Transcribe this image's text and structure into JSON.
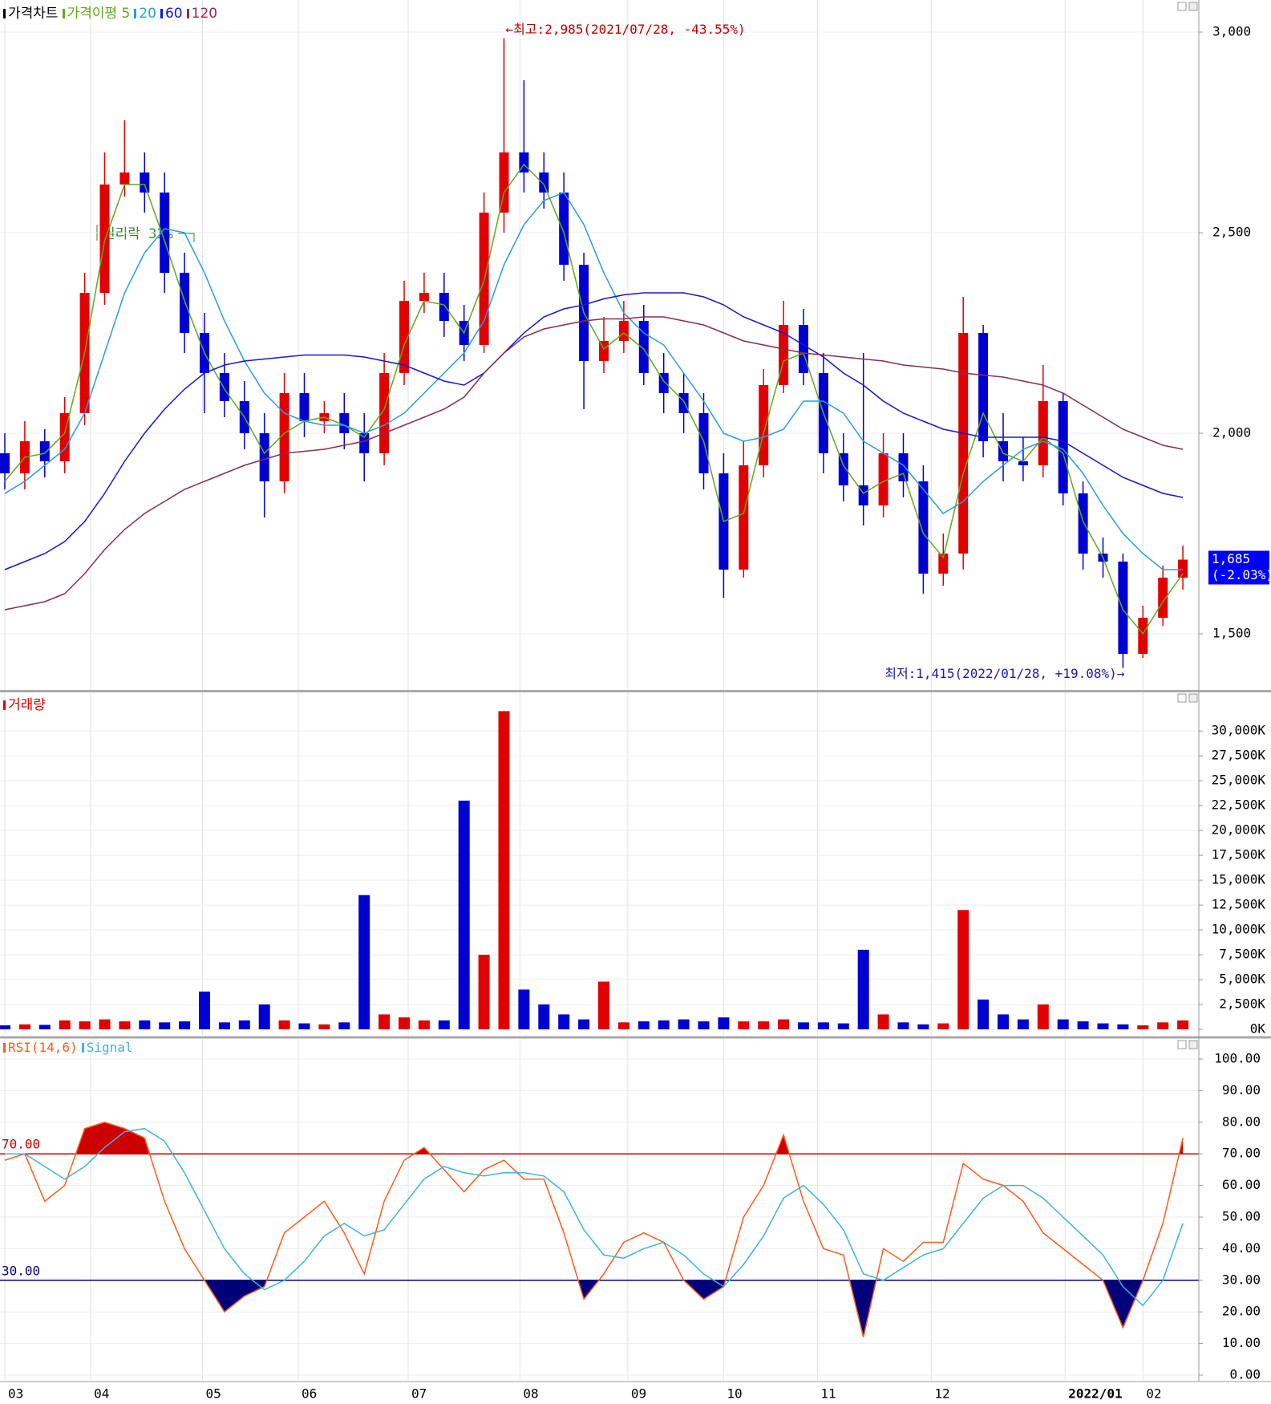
{
  "chart_data": [
    {
      "type": "candlestick",
      "name": "가격차트",
      "open": [
        1950,
        1900,
        1980,
        1930,
        2050,
        2350,
        2620,
        2650,
        2600,
        2400,
        2250,
        2150,
        2080,
        2000,
        1880,
        2100,
        2030,
        2050,
        2000,
        1950,
        2150,
        2330,
        2350,
        2280,
        2220,
        2550,
        2700,
        2650,
        2600,
        2420,
        2180,
        2230,
        2280,
        2150,
        2100,
        2050,
        1900,
        1660,
        1920,
        2120,
        2270,
        2150,
        1950,
        1870,
        1820,
        1950,
        1880,
        1650,
        1700,
        2250,
        1980,
        1930,
        1920,
        2080,
        1850,
        1700,
        1680,
        1450,
        1540,
        1640
      ],
      "high": [
        2000,
        2030,
        2010,
        2090,
        2400,
        2700,
        2780,
        2700,
        2650,
        2450,
        2300,
        2200,
        2130,
        2050,
        2150,
        2150,
        2080,
        2100,
        2050,
        2200,
        2380,
        2400,
        2400,
        2320,
        2600,
        2985,
        2880,
        2700,
        2650,
        2450,
        2290,
        2330,
        2320,
        2200,
        2150,
        2100,
        1950,
        1980,
        2160,
        2330,
        2310,
        2200,
        2000,
        2200,
        2000,
        2000,
        1920,
        1750,
        2340,
        2270,
        2050,
        1990,
        2170,
        2100,
        1880,
        1740,
        1700,
        1570,
        1670,
        1720
      ],
      "low": [
        1860,
        1860,
        1890,
        1900,
        2020,
        2320,
        2590,
        2550,
        2350,
        2200,
        2050,
        2040,
        1960,
        1790,
        1850,
        1990,
        2000,
        1960,
        1880,
        1920,
        2120,
        2300,
        2240,
        2180,
        2200,
        2500,
        2600,
        2560,
        2380,
        2060,
        2150,
        2200,
        2120,
        2050,
        2000,
        1860,
        1590,
        1640,
        1890,
        2100,
        2120,
        1900,
        1830,
        1770,
        1790,
        1840,
        1600,
        1620,
        1660,
        1940,
        1880,
        1880,
        1890,
        1820,
        1660,
        1640,
        1415,
        1440,
        1520,
        1610
      ],
      "close": [
        1900,
        1980,
        1930,
        2050,
        2350,
        2620,
        2650,
        2600,
        2400,
        2250,
        2150,
        2080,
        2000,
        1880,
        2100,
        2030,
        2050,
        2000,
        1950,
        2150,
        2330,
        2350,
        2280,
        2220,
        2550,
        2700,
        2650,
        2600,
        2420,
        2180,
        2230,
        2280,
        2150,
        2100,
        2050,
        1900,
        1660,
        1920,
        2120,
        2270,
        2150,
        1950,
        1870,
        1820,
        1950,
        1880,
        1650,
        1700,
        2250,
        1980,
        1930,
        1920,
        2080,
        1850,
        1700,
        1680,
        1450,
        1540,
        1640,
        1685
      ],
      "up_color": "#e00000",
      "down_color": "#0000d0",
      "series": [
        {
          "name": "가격이평 5",
          "color": "#62a81e",
          "values": [
            1880,
            1940,
            1950,
            2000,
            2200,
            2480,
            2620,
            2620,
            2480,
            2330,
            2200,
            2110,
            2040,
            1950,
            2000,
            2030,
            2040,
            2020,
            1990,
            2060,
            2220,
            2330,
            2320,
            2250,
            2380,
            2600,
            2670,
            2620,
            2500,
            2300,
            2210,
            2250,
            2210,
            2130,
            2080,
            1980,
            1780,
            1800,
            2000,
            2180,
            2200,
            2050,
            1920,
            1850,
            1880,
            1900,
            1750,
            1690,
            1900,
            2050,
            1950,
            1930,
            1990,
            1950,
            1780,
            1690,
            1560,
            1500,
            1580,
            1650
          ]
        },
        {
          "name": "20",
          "color": "#2a9be0",
          "values": [
            1850,
            1880,
            1920,
            1960,
            2050,
            2200,
            2350,
            2450,
            2510,
            2500,
            2400,
            2280,
            2180,
            2100,
            2050,
            2030,
            2020,
            2020,
            2000,
            2020,
            2050,
            2100,
            2150,
            2200,
            2280,
            2420,
            2520,
            2580,
            2600,
            2520,
            2400,
            2300,
            2250,
            2220,
            2150,
            2080,
            2000,
            1980,
            1990,
            2010,
            2080,
            2080,
            2050,
            1980,
            1950,
            1920,
            1860,
            1800,
            1830,
            1880,
            1920,
            1960,
            1980,
            1960,
            1900,
            1820,
            1750,
            1700,
            1660,
            1660
          ]
        },
        {
          "name": "60",
          "color": "#1515d8",
          "values": [
            1660,
            1680,
            1700,
            1730,
            1780,
            1850,
            1930,
            2000,
            2060,
            2110,
            2150,
            2170,
            2180,
            2185,
            2190,
            2195,
            2195,
            2195,
            2190,
            2180,
            2170,
            2150,
            2130,
            2120,
            2150,
            2200,
            2250,
            2290,
            2310,
            2320,
            2335,
            2345,
            2350,
            2350,
            2350,
            2340,
            2320,
            2290,
            2270,
            2250,
            2220,
            2190,
            2150,
            2120,
            2080,
            2050,
            2030,
            2010,
            2000,
            1990,
            1990,
            1990,
            1990,
            1980,
            1950,
            1920,
            1890,
            1870,
            1850,
            1840
          ]
        },
        {
          "name": "120",
          "color": "#8a2c50",
          "values": [
            1560,
            1570,
            1580,
            1600,
            1650,
            1710,
            1760,
            1800,
            1830,
            1860,
            1880,
            1900,
            1920,
            1935,
            1950,
            1955,
            1960,
            1970,
            1980,
            2000,
            2020,
            2040,
            2060,
            2090,
            2150,
            2200,
            2240,
            2260,
            2270,
            2280,
            2285,
            2285,
            2290,
            2290,
            2280,
            2270,
            2250,
            2230,
            2220,
            2210,
            2200,
            2195,
            2190,
            2185,
            2180,
            2170,
            2165,
            2160,
            2150,
            2145,
            2140,
            2130,
            2120,
            2100,
            2070,
            2040,
            2010,
            1990,
            1970,
            1960
          ]
        }
      ],
      "high_note": "←최고:2,985(2021/07/28, -43.55%)",
      "low_note": "최저:1,415(2022/01/28, +19.08%)→",
      "note": "권리락 33%",
      "last_price": {
        "value": 1685,
        "label": "1,685"
      },
      "last_change": "(-2.03%)",
      "ylim": [
        1360,
        3080
      ],
      "yticks": [
        {
          "value": 1500,
          "label": "1,500"
        },
        {
          "value": 2000,
          "label": "2,000"
        },
        {
          "value": 2500,
          "label": "2,500"
        },
        {
          "value": 3000,
          "label": "3,000"
        }
      ]
    },
    {
      "type": "bar",
      "name": "거래량",
      "values": [
        400,
        500,
        450,
        900,
        800,
        1000,
        800,
        900,
        700,
        800,
        3800,
        700,
        900,
        2500,
        900,
        600,
        500,
        700,
        13500,
        1500,
        1200,
        900,
        900,
        23000,
        7500,
        32000,
        4000,
        2500,
        1500,
        1000,
        4800,
        700,
        800,
        900,
        1000,
        800,
        1200,
        800,
        800,
        1000,
        700,
        700,
        600,
        8000,
        1500,
        700,
        500,
        600,
        12000,
        3000,
        1500,
        1000,
        2500,
        1000,
        800,
        600,
        500,
        400,
        700,
        900
      ],
      "ylim": [
        0,
        33000
      ],
      "yticks": [
        {
          "value": 0,
          "label": "0K"
        },
        {
          "value": 2500,
          "label": "2,500K"
        },
        {
          "value": 5000,
          "label": "5,000K"
        },
        {
          "value": 7500,
          "label": "7,500K"
        },
        {
          "value": 10000,
          "label": "10,000K"
        },
        {
          "value": 12500,
          "label": "12,500K"
        },
        {
          "value": 15000,
          "label": "15,000K"
        },
        {
          "value": 17500,
          "label": "17,500K"
        },
        {
          "value": 20000,
          "label": "20,000K"
        },
        {
          "value": 22500,
          "label": "22,500K"
        },
        {
          "value": 25000,
          "label": "25,000K"
        },
        {
          "value": 27500,
          "label": "27,500K"
        },
        {
          "value": 30000,
          "label": "30,000K"
        }
      ]
    },
    {
      "type": "line",
      "series": [
        {
          "name": "RSI(14,6)",
          "color": "#ff5a1e",
          "values": [
            68,
            70,
            55,
            60,
            78,
            80,
            78,
            75,
            55,
            40,
            30,
            20,
            25,
            28,
            45,
            50,
            55,
            45,
            32,
            55,
            68,
            72,
            65,
            58,
            65,
            68,
            62,
            62,
            45,
            24,
            32,
            42,
            45,
            42,
            30,
            24,
            28,
            50,
            60,
            76,
            55,
            40,
            38,
            12,
            40,
            36,
            42,
            42,
            67,
            62,
            60,
            55,
            45,
            40,
            35,
            30,
            15,
            30,
            48,
            75
          ]
        },
        {
          "name": "Signal",
          "color": "#3cb4dc",
          "values": [
            70,
            70,
            66,
            62,
            66,
            72,
            77,
            78,
            74,
            64,
            52,
            40,
            32,
            27,
            30,
            36,
            44,
            48,
            44,
            46,
            54,
            62,
            66,
            64,
            63,
            64,
            64,
            63,
            58,
            46,
            38,
            37,
            40,
            42,
            38,
            32,
            28,
            35,
            44,
            56,
            60,
            54,
            46,
            32,
            30,
            34,
            38,
            40,
            48,
            56,
            60,
            60,
            56,
            50,
            44,
            38,
            28,
            22,
            30,
            48
          ]
        }
      ],
      "levels": [
        {
          "value": 70,
          "label": "70.00",
          "color": "#cc0000"
        },
        {
          "value": 30,
          "label": "30.00",
          "color": "#00007a"
        }
      ],
      "ylim": [
        0,
        100
      ],
      "yticks": [
        {
          "value": 0,
          "label": "0.00"
        },
        {
          "value": 10,
          "label": "10.00"
        },
        {
          "value": 20,
          "label": "20.00"
        },
        {
          "value": 30,
          "label": "30.00"
        },
        {
          "value": 40,
          "label": "40.00"
        },
        {
          "value": 50,
          "label": "50.00"
        },
        {
          "value": 60,
          "label": "60.00"
        },
        {
          "value": 70,
          "label": "70.00"
        },
        {
          "value": 80,
          "label": "80.00"
        },
        {
          "value": 90,
          "label": "90.00"
        },
        {
          "value": 100,
          "label": "100.00"
        }
      ],
      "xticks": [
        {
          "value": 0,
          "label": "03"
        },
        {
          "value": 4.3,
          "label": "04"
        },
        {
          "value": 9.9,
          "label": "05"
        },
        {
          "value": 14.7,
          "label": "06"
        },
        {
          "value": 20.2,
          "label": "07"
        },
        {
          "value": 25.8,
          "label": "08"
        },
        {
          "value": 31.2,
          "label": "09"
        },
        {
          "value": 36,
          "label": "10"
        },
        {
          "value": 40.7,
          "label": "11"
        },
        {
          "value": 46.4,
          "label": "12"
        },
        {
          "value": 53.1,
          "label": "2022/01"
        },
        {
          "value": 57,
          "label": "02"
        }
      ]
    }
  ]
}
